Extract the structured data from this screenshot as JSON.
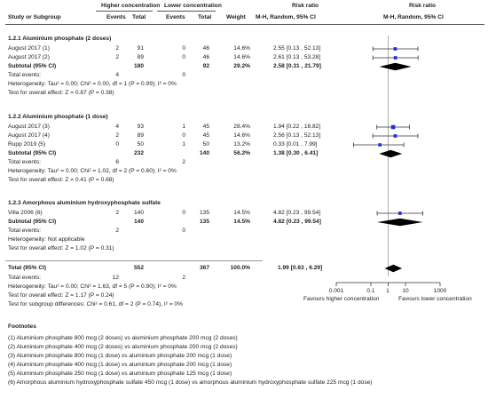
{
  "header": {
    "study": "Study or Subgroup",
    "group_a": "Higher concentration",
    "group_b": "Lower concentration",
    "events": "Events",
    "total": "Total",
    "weight": "Weight",
    "rr_text": "Risk ratio",
    "rr_text_method": "M-H, Random, 95% CI",
    "rr_plot": "Risk ratio",
    "rr_plot_method": "M-H, Random, 95% CI"
  },
  "subgroups": [
    {
      "title": "1.2.1 Aluminium phosphate (2 doses)",
      "studies": [
        {
          "name": "August 2017 (1)",
          "e1": "2",
          "t1": "91",
          "e2": "0",
          "t2": "46",
          "weight": "14.6%",
          "ci": "2.55 [0.13 , 52.13]"
        },
        {
          "name": "August 2017 (2)",
          "e1": "2",
          "t1": "89",
          "e2": "0",
          "t2": "46",
          "weight": "14.6%",
          "ci": "2.61 [0.13 , 53.28]"
        }
      ],
      "subtotal": {
        "label": "Subtotal (95% CI)",
        "t1": "180",
        "t2": "92",
        "weight": "29.2%",
        "ci": "2.58 [0.31 , 21.79]"
      },
      "total_events": {
        "label": "Total events:",
        "e1": "4",
        "e2": "0"
      },
      "heterogeneity": "Heterogeneity: Tau² = 0.00; Chi² = 0.00, df = 1 (P = 0.99); I² = 0%",
      "overall": "Test for overall effect: Z = 0.87 (P = 0.38)"
    },
    {
      "title": "1.2.2 Aluminium phosphate (1 dose)",
      "studies": [
        {
          "name": "August 2017 (3)",
          "e1": "4",
          "t1": "93",
          "e2": "1",
          "t2": "45",
          "weight": "28.4%",
          "ci": "1.94 [0.22 , 16.82]"
        },
        {
          "name": "August 2017 (4)",
          "e1": "2",
          "t1": "89",
          "e2": "0",
          "t2": "45",
          "weight": "14.6%",
          "ci": "2.56 [0.13 , 52.13]"
        },
        {
          "name": "Rupp 2019 (5)",
          "e1": "0",
          "t1": "50",
          "e2": "1",
          "t2": "50",
          "weight": "13.2%",
          "ci": "0.33 [0.01 , 7.99]"
        }
      ],
      "subtotal": {
        "label": "Subtotal (95% CI)",
        "t1": "232",
        "t2": "140",
        "weight": "56.2%",
        "ci": "1.38 [0.30 , 6.41]"
      },
      "total_events": {
        "label": "Total events:",
        "e1": "6",
        "e2": "2"
      },
      "heterogeneity": "Heterogeneity: Tau² = 0.00; Chi² = 1.02, df = 2 (P = 0.60); I² = 0%",
      "overall": "Test for overall effect: Z = 0.41 (P = 0.68)"
    },
    {
      "title": "1.2.3 Amorphous aluminium hydroxyphosphate sulfate",
      "studies": [
        {
          "name": "Villa 2006 (6)",
          "e1": "2",
          "t1": "140",
          "e2": "0",
          "t2": "135",
          "weight": "14.5%",
          "ci": "4.82 [0.23 , 99.54]"
        }
      ],
      "subtotal": {
        "label": "Subtotal (95% CI)",
        "t1": "140",
        "t2": "135",
        "weight": "14.5%",
        "ci": "4.82 [0.23 , 99.54]"
      },
      "total_events": {
        "label": "Total events:",
        "e1": "2",
        "e2": "0"
      },
      "heterogeneity": "Heterogeneity: Not applicable",
      "overall": "Test for overall effect: Z = 1.02 (P = 0.31)"
    }
  ],
  "total": {
    "label": "Total (95% CI)",
    "t1": "552",
    "t2": "367",
    "weight": "100.0%",
    "ci": "1.99 [0.63 , 6.29]",
    "total_events_label": "Total events:",
    "e1": "12",
    "e2": "2",
    "heterogeneity": "Heterogeneity: Tau² = 0.00; Chi² = 1.63, df = 5 (P = 0.90); I² = 0%",
    "overall": "Test for overall effect: Z = 1.17 (P = 0.24)",
    "subgroup_diff": "Test for subgroup differences: Chi² = 0.61, df = 2 (P = 0.74), I² = 0%"
  },
  "axis": {
    "ticks": [
      "0.001",
      "0.1",
      "1",
      "10",
      "1000"
    ],
    "favours_left": "Favours higher concentration",
    "favours_right": "Favours lower concentration"
  },
  "footnotes": {
    "title": "Footnotes",
    "items": [
      "(1) Aluminium phosphate 800 mcg (2 doses) vs aluminium phosphate 200 mcg (2 doses)",
      "(2) Aluminium phosphate 400 mcg (2 doses) vs aluminium phosphate 200 mcg (2 doses)",
      "(3) Aluminium phosphate 800 mcg (1 dose) vs aluminium phosphate 200 mcg (1 dose)",
      "(4) Aluminium phosphate 400 mcg (1 dose) vs aluminium phosphate 200 mcg (1 dose)",
      "(5) Aluminium phosphate 250 mcg (1 dose) vs aluminium phosphate 125 mcg (1 dose)",
      "(6) Amorphous aluminium hydroxyphosphate sulfate 450 mcg (1 dose) vs amorphous aluminium hydroxyphosphate sulfate 225 mcg (1 dose)"
    ]
  },
  "colors": {
    "marker": "#1f2fd6",
    "diamond": "#000000",
    "line": "#333333"
  },
  "chart_data": {
    "type": "scatter",
    "scale": "log",
    "xlim": [
      0.001,
      1000
    ],
    "xticks": [
      0.001,
      0.1,
      1,
      10,
      1000
    ],
    "null_line": 1,
    "xlabel_left": "Favours higher concentration",
    "xlabel_right": "Favours lower concentration",
    "studies": [
      {
        "label": "August 2017 (1)",
        "rr": 2.55,
        "lo": 0.13,
        "hi": 52.13,
        "weight": 14.6
      },
      {
        "label": "August 2017 (2)",
        "rr": 2.61,
        "lo": 0.13,
        "hi": 53.28,
        "weight": 14.6
      },
      {
        "label": "August 2017 (3)",
        "rr": 1.94,
        "lo": 0.22,
        "hi": 16.82,
        "weight": 28.4
      },
      {
        "label": "August 2017 (4)",
        "rr": 2.56,
        "lo": 0.13,
        "hi": 52.13,
        "weight": 14.6
      },
      {
        "label": "Rupp 2019 (5)",
        "rr": 0.33,
        "lo": 0.01,
        "hi": 7.99,
        "weight": 13.2
      },
      {
        "label": "Villa 2006 (6)",
        "rr": 4.82,
        "lo": 0.23,
        "hi": 99.54,
        "weight": 14.5
      }
    ],
    "pooled": [
      {
        "label": "Subtotal 1.2.1",
        "rr": 2.58,
        "lo": 0.31,
        "hi": 21.79
      },
      {
        "label": "Subtotal 1.2.2",
        "rr": 1.38,
        "lo": 0.3,
        "hi": 6.41
      },
      {
        "label": "Subtotal 1.2.3",
        "rr": 4.82,
        "lo": 0.23,
        "hi": 99.54
      },
      {
        "label": "Total",
        "rr": 1.99,
        "lo": 0.63,
        "hi": 6.29
      }
    ]
  }
}
